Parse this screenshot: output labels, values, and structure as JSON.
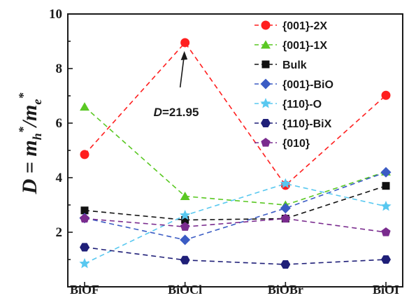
{
  "chart_data": {
    "type": "line",
    "title": "",
    "xlabel": "",
    "ylabel": {
      "main": "D = m",
      "sub_h": "h",
      "star": "*",
      "slash": "/m",
      "sub_e": "e"
    },
    "categories": [
      "BiOF",
      "BiOCl",
      "BiOBr",
      "BiOI"
    ],
    "ylim": [
      0,
      10
    ],
    "yticks": [
      "2",
      "4",
      "6",
      "8",
      "10"
    ],
    "grid": false,
    "legend_position": "top-right",
    "series": [
      {
        "name": "{001}-2X",
        "color": "#ff1f1f",
        "marker": "circle",
        "values": [
          4.85,
          8.95,
          3.72,
          7.02
        ]
      },
      {
        "name": "{001}-1X",
        "color": "#5ac823",
        "marker": "triangle",
        "values": [
          6.6,
          3.32,
          3.0,
          4.22
        ]
      },
      {
        "name": "Bulk",
        "color": "#111111",
        "marker": "square",
        "values": [
          2.8,
          2.45,
          2.5,
          3.7
        ]
      },
      {
        "name": "{001}-BiO",
        "color": "#3b5cc4",
        "marker": "diamond",
        "values": [
          2.52,
          1.72,
          2.88,
          4.2
        ]
      },
      {
        "name": "{110}-O",
        "color": "#58c8f0",
        "marker": "star",
        "values": [
          0.85,
          2.62,
          3.78,
          2.95
        ]
      },
      {
        "name": "{110}-BiX",
        "color": "#1f1f78",
        "marker": "hexagon",
        "values": [
          1.45,
          0.98,
          0.82,
          1.0
        ]
      },
      {
        "name": "{010}",
        "color": "#7a2b8e",
        "marker": "pentagon",
        "values": [
          2.5,
          2.2,
          2.5,
          2.0
        ]
      }
    ],
    "annotation": {
      "text_italic": "D",
      "text_rest": "=21.95",
      "target_category": "BiOCl",
      "target_value": 8.95
    }
  }
}
